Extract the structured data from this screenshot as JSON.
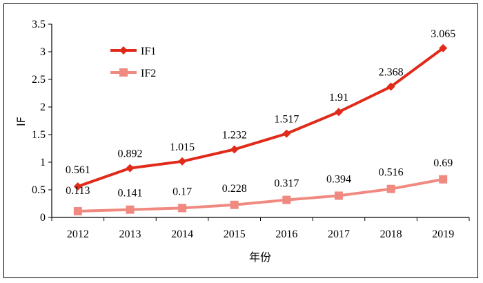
{
  "chart_data": {
    "type": "line",
    "title": "",
    "xlabel": "年份",
    "ylabel": "IF",
    "categories": [
      "2012",
      "2013",
      "2014",
      "2015",
      "2016",
      "2017",
      "2018",
      "2019"
    ],
    "ylim": [
      0,
      3.5
    ],
    "yticks": [
      "0",
      "0.5",
      "1",
      "1.5",
      "2",
      "2.5",
      "3",
      "3.5"
    ],
    "grid": false,
    "legend_position": "top-left",
    "series": [
      {
        "name": "IF1",
        "color": "#e02a1a",
        "marker": "diamond",
        "values": [
          0.561,
          0.892,
          1.015,
          1.232,
          1.517,
          1.91,
          2.368,
          3.065
        ],
        "labels": [
          "0.561",
          "0.892",
          "1.015",
          "1.232",
          "1.517",
          "1.91",
          "2.368",
          "3.065"
        ]
      },
      {
        "name": "IF2",
        "color": "#f08a80",
        "marker": "square",
        "values": [
          0.113,
          0.141,
          0.17,
          0.228,
          0.317,
          0.394,
          0.516,
          0.69
        ],
        "labels": [
          "0.113",
          "0.141",
          "0.17",
          "0.228",
          "0.317",
          "0.394",
          "0.516",
          "0.69"
        ]
      }
    ]
  }
}
